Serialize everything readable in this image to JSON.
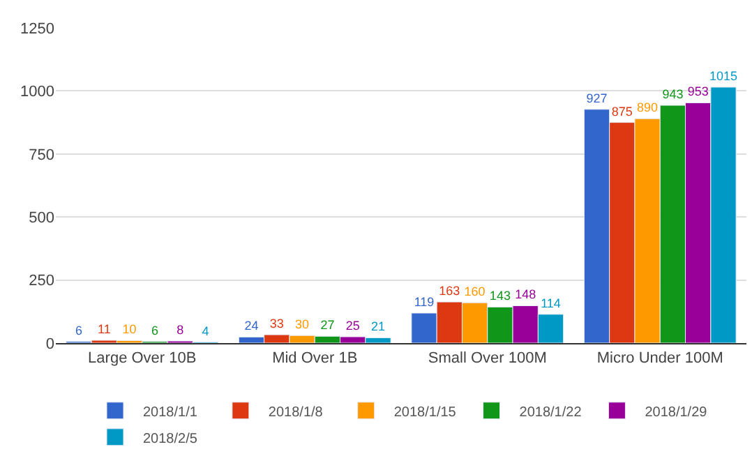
{
  "chart_data": {
    "type": "bar",
    "categories": [
      "Large Over 10B",
      "Mid Over 1B",
      "Small Over 100M",
      "Micro Under 100M"
    ],
    "series": [
      {
        "name": "2018/1/1",
        "color": "#3366cc",
        "values": [
          6,
          24,
          119,
          927
        ]
      },
      {
        "name": "2018/1/8",
        "color": "#dc3912",
        "values": [
          11,
          33,
          163,
          875
        ]
      },
      {
        "name": "2018/1/15",
        "color": "#ff9900",
        "values": [
          10,
          30,
          160,
          890
        ]
      },
      {
        "name": "2018/1/22",
        "color": "#109618",
        "values": [
          6,
          27,
          143,
          943
        ]
      },
      {
        "name": "2018/1/29",
        "color": "#990099",
        "values": [
          8,
          25,
          148,
          953
        ]
      },
      {
        "name": "2018/2/5",
        "color": "#0099c6",
        "values": [
          4,
          21,
          114,
          1015
        ]
      }
    ],
    "ylim": [
      0,
      1250
    ],
    "yticks": [
      0,
      250,
      500,
      750,
      1000,
      1250
    ],
    "grid": "y",
    "legend": "bottom",
    "data_labels": true
  }
}
